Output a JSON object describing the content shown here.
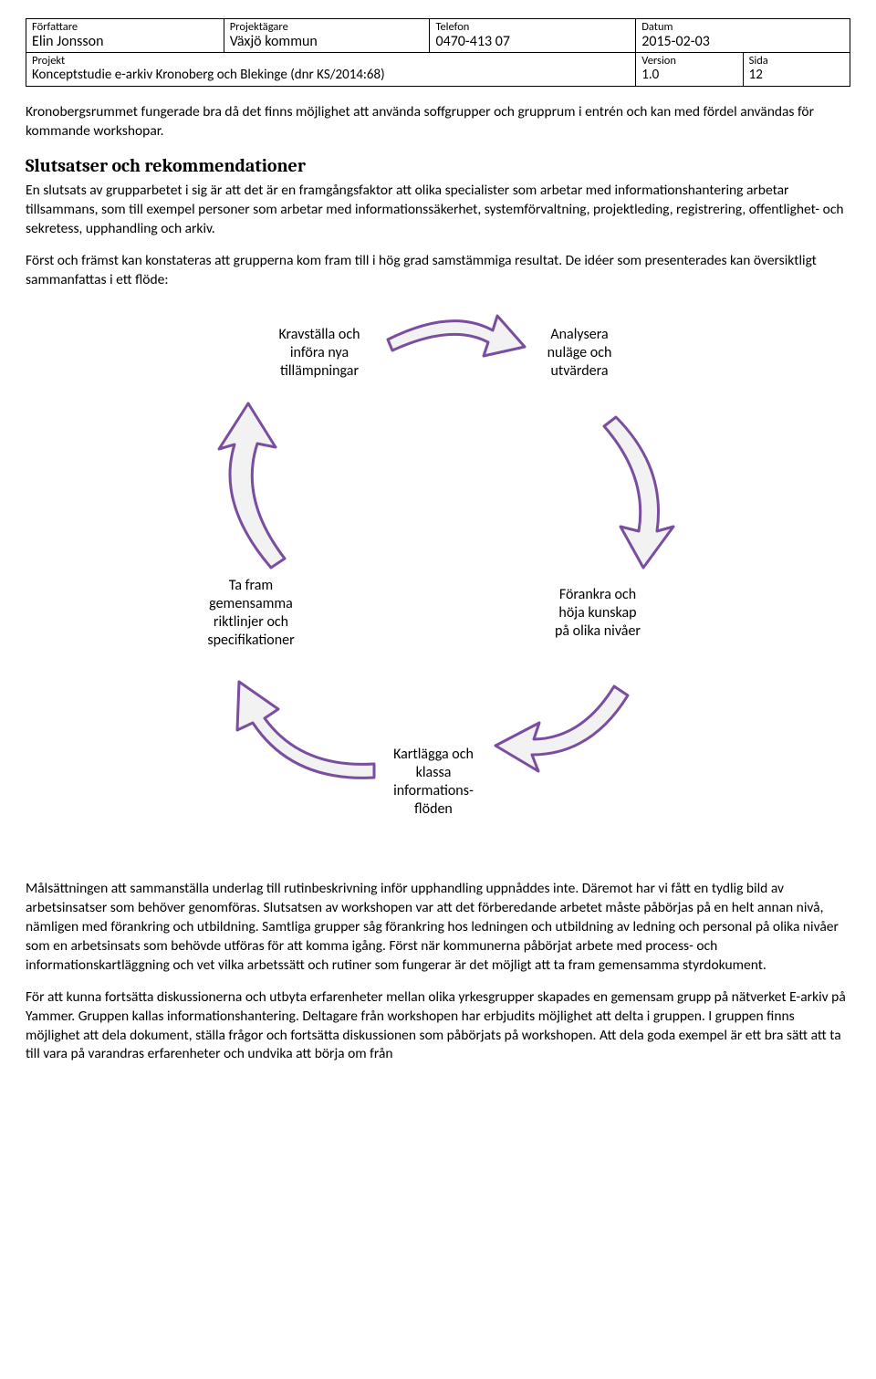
{
  "header": {
    "row1": {
      "c1_label": "Författare",
      "c1_value": "Elin Jonsson",
      "c2_label": "Projektägare",
      "c2_value": "Växjö kommun",
      "c3_label": "Telefon",
      "c3_value": "0470-413 07",
      "c4_label": "Datum",
      "c4_value": "2015-02-03"
    },
    "row2": {
      "left_label": "Projekt",
      "left_value": "Konceptstudie e-arkiv Kronoberg och Blekinge (dnr KS/2014:68)",
      "version_label": "Version",
      "version_value": "1.0",
      "page_label": "Sida",
      "page_value": "12"
    }
  },
  "p1": "Kronobergsrummet fungerade bra då det finns möjlighet att använda soffgrupper och grupprum i entrén och kan med fördel användas för kommande workshopar.",
  "section_heading": "Slutsatser och rekommendationer",
  "p2": "En slutsats av grupparbetet i sig är att det är en framgångsfaktor att olika specialister som arbetar med informationshantering arbetar tillsammans, som till exempel personer som arbetar med informationssäkerhet, systemförvaltning, projektleding, registrering, offentlighet- och sekretess, upphandling och arkiv.",
  "p3": "Först och främst kan konstateras att grupperna kom fram till i hög grad samstämmiga resultat. De idéer som presenterades kan översiktligt sammanfattas i ett flöde:",
  "cycle": {
    "node1": "Kravställa och\ninföra nya\ntillämpningar",
    "node2": "Analysera\nnuläge och\nutvärdera",
    "node3": "Förankra och\nhöja kunskap\npå olika nivåer",
    "node4": "Kartlägga och\nklassa\ninformations-\nflöden",
    "node5": "Ta fram\ngemensamma\nriktlinjer och\nspecifikationer",
    "arrow_stroke": "#7a4da0",
    "arrow_fill": "#f2f2f2"
  },
  "p4": "Målsättningen att sammanställa underlag till rutinbeskrivning inför upphandling uppnåddes inte. Däremot har vi fått en tydlig bild av arbetsinsatser som behöver genomföras. Slutsatsen av workshopen var att det förberedande arbetet måste påbörjas på en helt annan nivå, nämligen med förankring och utbildning. Samtliga grupper såg förankring hos ledningen och utbildning av ledning och personal på olika nivåer som en arbetsinsats som behövde utföras för att komma igång. Först när kommunerna påbörjat arbete med process- och informationskartläggning och vet vilka arbetssätt och rutiner som fungerar är det möjligt att ta fram gemensamma styrdokument.",
  "p5": "För att kunna fortsätta diskussionerna och utbyta erfarenheter mellan olika yrkesgrupper skapades en gemensam grupp på nätverket E-arkiv på Yammer. Gruppen kallas informationshantering. Deltagare från workshopen har erbjudits möjlighet att delta i gruppen. I gruppen finns möjlighet att dela dokument, ställa frågor och fortsätta diskussionen som påbörjats på workshopen. Att dela goda exempel är ett bra sätt att ta till vara på varandras erfarenheter och undvika att börja om från"
}
